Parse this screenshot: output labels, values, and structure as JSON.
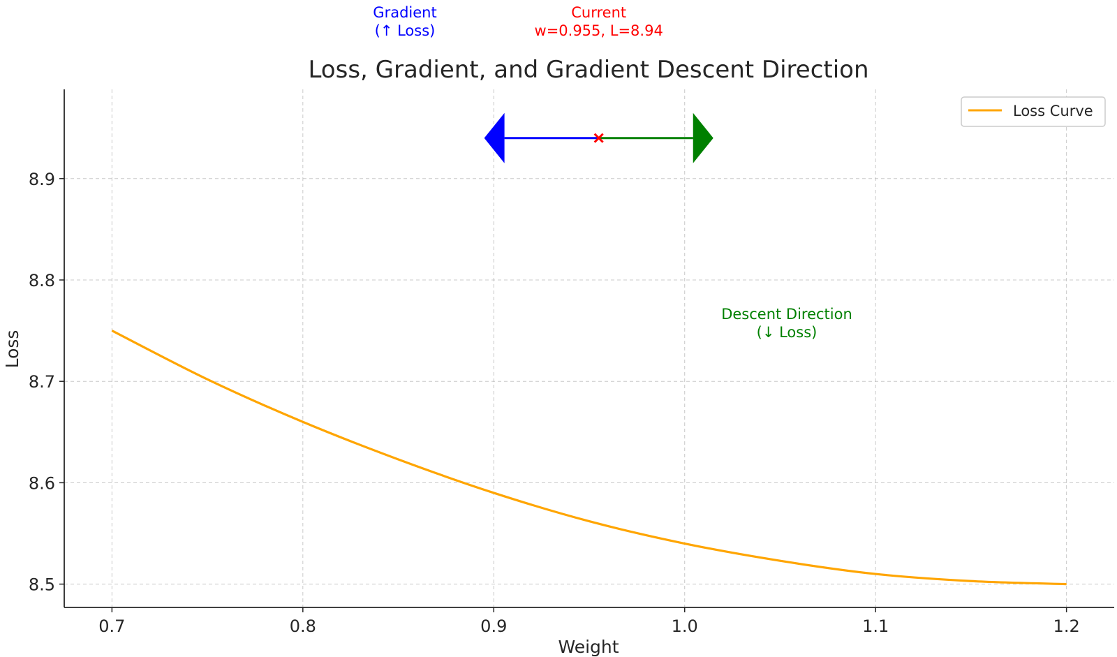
{
  "chart_data": {
    "type": "line",
    "title": "Loss, Gradient, and Gradient Descent Direction",
    "xlabel": "Weight",
    "ylabel": "Loss",
    "xlim": [
      0.675,
      1.225
    ],
    "ylim": [
      8.477,
      8.988
    ],
    "grid": true,
    "legend_position": "top-right",
    "x_ticks": [
      0.7,
      0.8,
      0.9,
      1.0,
      1.1,
      1.2
    ],
    "x_tick_labels": [
      "0.7",
      "0.8",
      "0.9",
      "1.0",
      "1.1",
      "1.2"
    ],
    "y_ticks": [
      8.5,
      8.6,
      8.7,
      8.8,
      8.9
    ],
    "y_tick_labels": [
      "8.5",
      "8.6",
      "8.7",
      "8.8",
      "8.9"
    ],
    "series": [
      {
        "name": "Loss Curve",
        "color": "#FFA500",
        "x": [
          0.7,
          0.75,
          0.8,
          0.85,
          0.9,
          0.95,
          1.0,
          1.05,
          1.1,
          1.15,
          1.2
        ],
        "y": [
          8.75,
          8.702,
          8.66,
          8.623,
          8.59,
          8.562,
          8.54,
          8.523,
          8.51,
          8.503,
          8.5
        ]
      }
    ],
    "current_point": {
      "x": 0.955,
      "y": 8.94,
      "color": "#FF0000",
      "label_lines": [
        "Current",
        "w=0.955, L=8.94"
      ]
    },
    "gradient_arrow": {
      "from_x": 0.955,
      "to_x": 0.895,
      "y": 8.94,
      "color": "#0000FF",
      "label_lines": [
        "Gradient",
        "(↑ Loss)"
      ]
    },
    "descent_arrow": {
      "from_x": 0.955,
      "to_x": 1.015,
      "y": 8.94,
      "color": "#008000",
      "label_lines": [
        "Descent Direction",
        "(↓ Loss)"
      ]
    }
  }
}
